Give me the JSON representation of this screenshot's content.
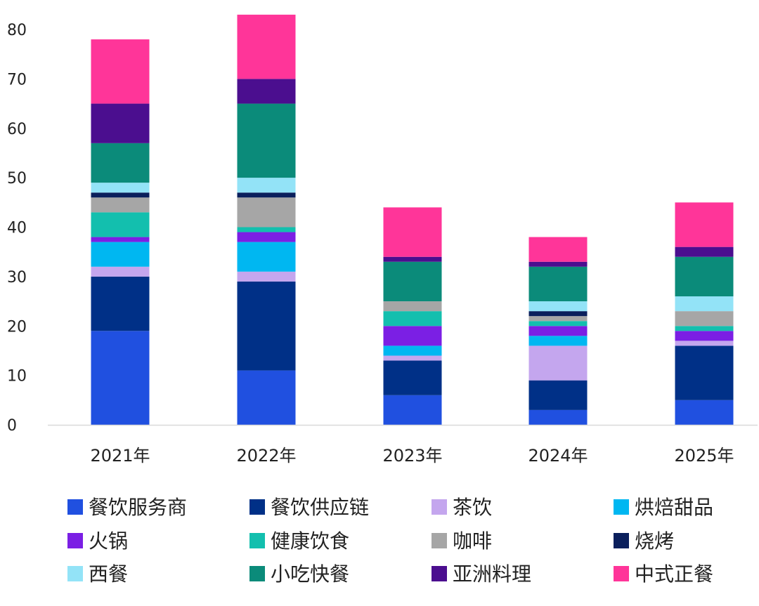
{
  "chart_data": {
    "type": "bar",
    "stacked": true,
    "categories": [
      "2021年",
      "2022年",
      "2023年",
      "2024年",
      "2025年"
    ],
    "ylim": [
      0,
      80
    ],
    "yticks": [
      0,
      10,
      20,
      30,
      40,
      50,
      60,
      70,
      80
    ],
    "grid": false,
    "legend_position": "bottom",
    "series": [
      {
        "name": "餐饮服务商",
        "color": "#2050E0",
        "values": [
          19,
          11,
          6,
          3,
          5
        ]
      },
      {
        "name": "餐饮供应链",
        "color": "#003087",
        "values": [
          11,
          18,
          7,
          6,
          11
        ]
      },
      {
        "name": "茶饮",
        "color": "#C4A6EE",
        "values": [
          2,
          2,
          1,
          7,
          1
        ]
      },
      {
        "name": "烘焙甜品",
        "color": "#00B7F1",
        "values": [
          5,
          6,
          2,
          2,
          0
        ]
      },
      {
        "name": "火锅",
        "color": "#7B1FE4",
        "values": [
          1,
          2,
          4,
          2,
          2
        ]
      },
      {
        "name": "健康饮食",
        "color": "#13BFAE",
        "values": [
          5,
          1,
          3,
          1,
          1
        ]
      },
      {
        "name": "咖啡",
        "color": "#A6A6A6",
        "values": [
          3,
          6,
          2,
          1,
          3
        ]
      },
      {
        "name": "烧烤",
        "color": "#0A1F5C",
        "values": [
          1,
          1,
          0,
          1,
          0
        ]
      },
      {
        "name": "西餐",
        "color": "#93E3F7",
        "values": [
          2,
          3,
          0,
          2,
          3
        ]
      },
      {
        "name": "小吃快餐",
        "color": "#0B8B7A",
        "values": [
          8,
          15,
          8,
          7,
          8
        ]
      },
      {
        "name": "亚洲料理",
        "color": "#4B0E8F",
        "values": [
          8,
          5,
          1,
          1,
          2
        ]
      },
      {
        "name": "中式正餐",
        "color": "#FF3599",
        "values": [
          13,
          13,
          10,
          5,
          9
        ]
      }
    ]
  }
}
